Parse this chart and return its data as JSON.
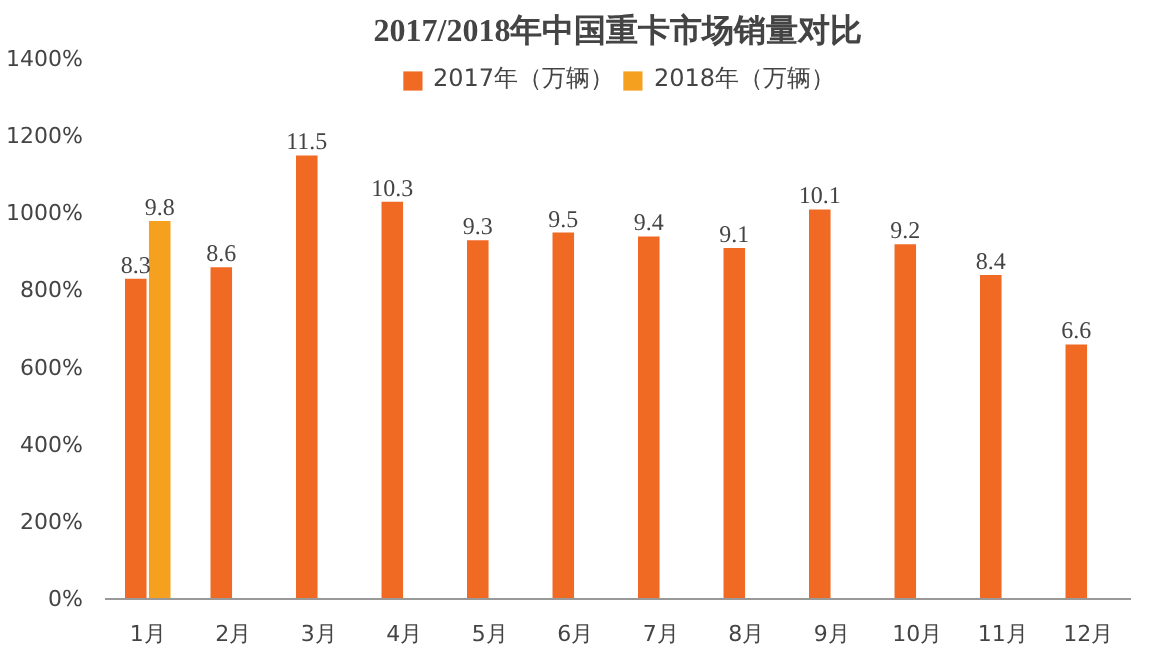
{
  "chart_data": {
    "type": "bar",
    "title": "2017/2018年中国重卡市场销量对比",
    "categories": [
      "1月",
      "2月",
      "3月",
      "4月",
      "5月",
      "6月",
      "7月",
      "8月",
      "9月",
      "10月",
      "11月",
      "12月"
    ],
    "series": [
      {
        "name": "2017年（万辆）",
        "color": "#f06a24",
        "values": [
          8.3,
          8.6,
          11.5,
          10.3,
          9.3,
          9.5,
          9.4,
          9.1,
          10.1,
          9.2,
          8.4,
          6.6
        ]
      },
      {
        "name": "2018年（万辆）",
        "color": "#f5a01e",
        "values": [
          9.8,
          null,
          null,
          null,
          null,
          null,
          null,
          null,
          null,
          null,
          null,
          null
        ]
      }
    ],
    "ylim": [
      0,
      14
    ],
    "yticks": [
      {
        "value": 0,
        "label": "0%"
      },
      {
        "value": 2,
        "label": "200%"
      },
      {
        "value": 4,
        "label": "400%"
      },
      {
        "value": 6,
        "label": "600%"
      },
      {
        "value": 8,
        "label": "800%"
      },
      {
        "value": 10,
        "label": "1000%"
      },
      {
        "value": 12,
        "label": "1200%"
      },
      {
        "value": 14,
        "label": "1400%"
      }
    ],
    "data_labels": true,
    "legend": "top",
    "grid": false
  }
}
